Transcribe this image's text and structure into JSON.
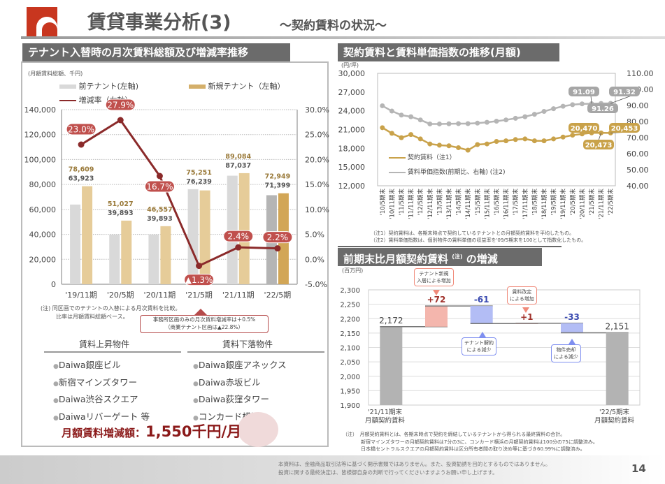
{
  "header": {
    "title": "賃貸事業分析(3)",
    "subtitle": "～契約賃料の状況～",
    "logo_color": "#c8361f"
  },
  "left": {
    "section_title": "テナント入替時の月次賃料総額及び増減率推移",
    "chart_data": {
      "type": "bar",
      "unit_label": "(月額賃料総額、千円)",
      "categories": [
        "'19/11期",
        "'20/5期",
        "'20/11期",
        "'21/5期",
        "'21/11期",
        "'22/5期"
      ],
      "series": [
        {
          "name": "前テナント(左軸)",
          "values": [
            63923,
            39893,
            39893,
            76239,
            87037,
            71399
          ],
          "color": "#d9d9d9"
        },
        {
          "name": "新規テナント（左軸）",
          "values": [
            78609,
            51027,
            46557,
            75251,
            89084,
            72949
          ],
          "color": "#e6cc99"
        },
        {
          "name": "増減率（右軸）",
          "type": "line",
          "values": [
            23.0,
            27.9,
            16.7,
            -1.3,
            2.4,
            2.2
          ],
          "labels": [
            "23.0%",
            "27.9%",
            "16.7%",
            "▲1.3%",
            "2.4%",
            "2.2%"
          ],
          "color": "#8b2a2a"
        }
      ],
      "ylim_left": [
        0,
        140000
      ],
      "yticks_left": [
        "0",
        "20,000",
        "40,000",
        "60,000",
        "80,000",
        "100,000",
        "120,000",
        "140,000"
      ],
      "ylim_right": [
        -5,
        30
      ],
      "yticks_right": [
        "-5.0%",
        "0.0%",
        "5.0%",
        "10.0%",
        "15.0%",
        "20.0%",
        "25.0%",
        "30.0%"
      ],
      "grid": true
    },
    "note": [
      "(注) 同区画でのテナントの入替による月次賃料を比較。",
      "比率は月額賃料総額ベース。"
    ],
    "callout": [
      "事務所区画のみの月次賃料増減率は＋0.5%",
      "（商業テナント区画は▲22.8%）"
    ],
    "rising": {
      "title": "賃料上昇物件",
      "items": [
        "Daiwa銀座ビル",
        "新宿マインズタワー",
        "Daiwa渋谷スクエア",
        "Daiwaリバーゲート 等"
      ]
    },
    "falling": {
      "title": "賃料下落物件",
      "items": [
        "Daiwa銀座アネックス",
        "Daiwa赤坂ビル",
        "Daiwa荻窪タワー",
        "コンカード横浜"
      ]
    },
    "summary_label": "月額賃料増減額：",
    "summary_value": "1,550千円/月"
  },
  "rent_trend": {
    "section_title": "契約賃料と賃料単価指数の推移(月額)",
    "chart_data": {
      "type": "line",
      "unit_label": "(円/坪)",
      "x": [
        "'10/5期末",
        "'10/11期末",
        "'11/5期末",
        "'11/11期末",
        "'12/5期末",
        "'12/11期末",
        "'13/5期末",
        "'13/11期末",
        "'14/5期末",
        "'14/11期末",
        "'15/5期末",
        "'15/11期末",
        "'16/5期末",
        "'16/11期末",
        "'17/5期末",
        "'17/11期末",
        "'18/5期末",
        "'18/11期末",
        "'19/5期末",
        "'19/11期末",
        "'20/5期末",
        "'20/11期末",
        "'21/5期末",
        "'21/11期末",
        "'22/5期末"
      ],
      "series": [
        {
          "name": "契約賃料（注1）",
          "axis": "left",
          "color": "#c9a24a",
          "values": [
            21300,
            20400,
            19700,
            20200,
            19500,
            18700,
            18500,
            18400,
            18100,
            17700,
            18600,
            18700,
            19100,
            19200,
            19400,
            19500,
            19200,
            19200,
            19500,
            19800,
            20100,
            20300,
            20470,
            20473,
            20453
          ],
          "labels": {
            "22": "20,470",
            "23": "20,473",
            "24": "20,453"
          }
        },
        {
          "name": "賃料単価指数(前期比、右軸) (注2)",
          "axis": "right",
          "color": "#b5b5b5",
          "values": [
            89.8,
            86.5,
            84.0,
            83.0,
            81.0,
            78.5,
            78.5,
            78.6,
            78.7,
            78.7,
            79.0,
            79.5,
            80.2,
            81.0,
            82.0,
            83.0,
            84.5,
            86.3,
            88.0,
            89.5,
            90.5,
            91.0,
            91.09,
            91.26,
            91.32
          ],
          "labels": {
            "22": "91.09",
            "23": "91.26",
            "24": "91.32"
          }
        }
      ],
      "ylim_left": [
        12000,
        30000
      ],
      "yticks_left": [
        "12,000",
        "15,000",
        "18,000",
        "21,000",
        "24,000",
        "27,000",
        "30,000"
      ],
      "ylim_right": [
        40,
        110
      ],
      "yticks_right": [
        "40.00",
        "50.00",
        "60.00",
        "70.00",
        "80.00",
        "90.00",
        "100.00",
        "110.00"
      ],
      "grid": false
    },
    "notes": [
      "（注1）契約賃料は、各期末時点で契約しているテナントとの月額契約賃料を平均したもの。",
      "（注2）賃料単価指数は、個別物件の賃料単価の収益率を'09/5期末を100として指数化したもの。"
    ]
  },
  "waterfall": {
    "section_title": "前期末比月額契約賃料",
    "section_sup": "(注)",
    "section_suffix": "の増減",
    "chart_data": {
      "type": "bar",
      "subtype": "waterfall",
      "unit_label": "(百万円)",
      "steps": [
        {
          "label": "'21/11期末\n月額契約賃料",
          "value": 2172,
          "kind": "total",
          "text": "2,172"
        },
        {
          "label": "",
          "value": 72,
          "kind": "increase",
          "text": "+72"
        },
        {
          "label": "",
          "value": -61,
          "kind": "decrease",
          "text": "-61"
        },
        {
          "label": "",
          "value": 1,
          "kind": "increase",
          "text": "+1"
        },
        {
          "label": "",
          "value": -33,
          "kind": "decrease",
          "text": "-33"
        },
        {
          "label": "'22/5期末\n月額契約賃料",
          "value": 2151,
          "kind": "total",
          "text": "2,151"
        }
      ],
      "ylim": [
        1900,
        2300
      ],
      "yticks": [
        "1,900",
        "1,950",
        "2,000",
        "2,050",
        "2,100",
        "2,150",
        "2,200",
        "2,250",
        "2,300"
      ],
      "colors": {
        "total": "#b3b3b3",
        "increase": "#f4b6ad",
        "decrease": "#b3bdf5",
        "increase_text": "#a0302a",
        "decrease_text": "#3a4ab0"
      },
      "grid": true
    },
    "x_labels": [
      [
        "'21/11期末",
        "月額契約賃料"
      ],
      [
        "'22/5期末",
        "月額契約賃料"
      ]
    ],
    "callouts": [
      [
        "テナント新規",
        "入居による増加"
      ],
      [
        "テナント解約",
        "による減少"
      ],
      [
        "賃料改定",
        "による増加"
      ],
      [
        "物件売却",
        "による減少"
      ]
    ],
    "notes": [
      "（注）　月額契約賃料とは、各期末時点で契約を締結しているテナントから得られる最終賃料の合計。",
      "新宿マインズタワーの月額契約賃料は7分の3に、コンカード横浜の月額契約賃料は100分の75に調整済み。",
      "日本橋セントラルスクエアの月額契約賃料は区分所有者間の取り決め等に基づき60.99%に調整済み。"
    ]
  },
  "footer": {
    "disclaimer": [
      "本資料は、金融商品取引法等に基づく開示書類ではありません。また、投資勧誘を目的とするものではありません。",
      "投資に関する最終決定は、皆様御自身の判断で行ってくださいますようお願い申し上げます。"
    ],
    "page_number": "14"
  }
}
